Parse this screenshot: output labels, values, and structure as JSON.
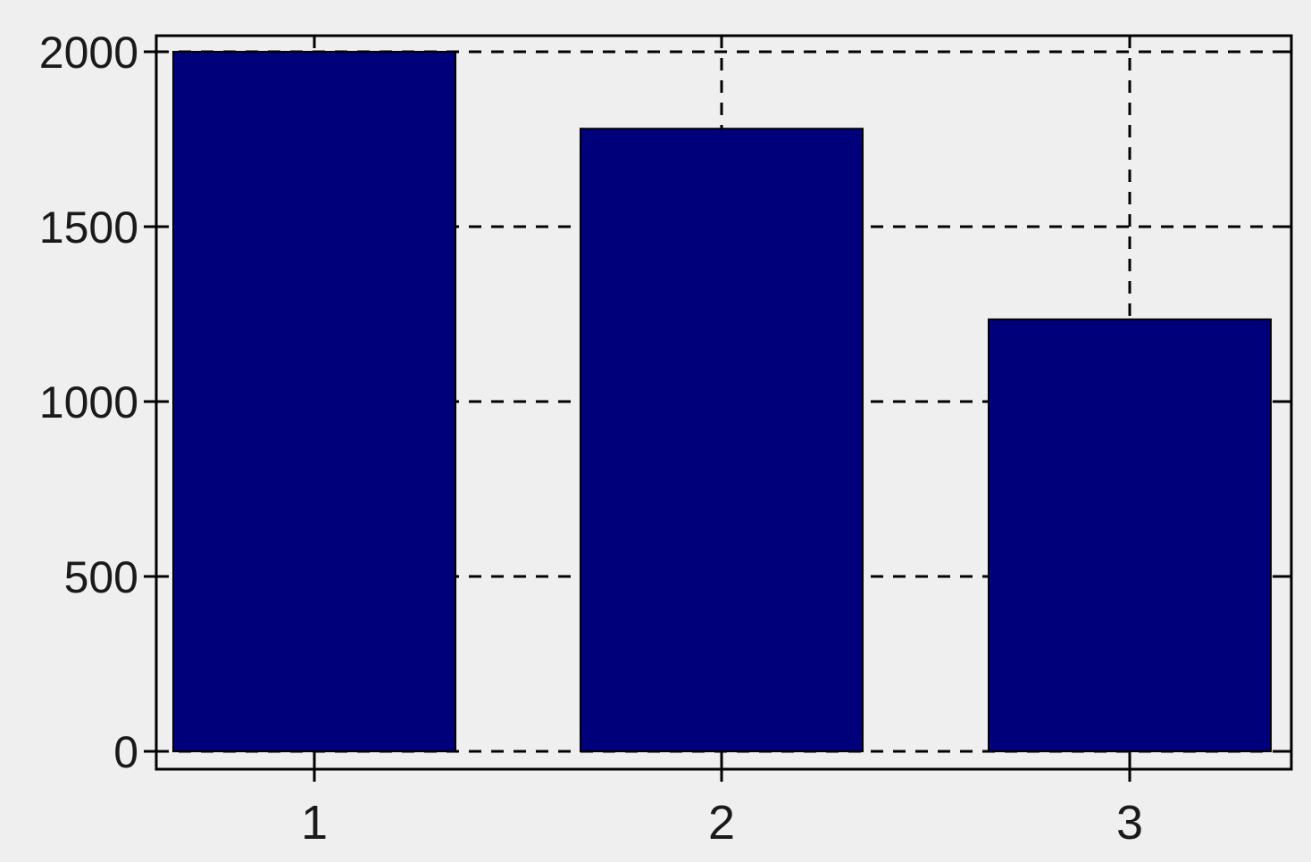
{
  "chart_data": {
    "type": "bar",
    "categories": [
      "1",
      "2",
      "3"
    ],
    "values": [
      2000,
      1780,
      1235
    ],
    "title": "",
    "xlabel": "",
    "ylabel": "",
    "ylim": [
      0,
      2000
    ],
    "yticks": [
      "0",
      "500",
      "1000",
      "1500",
      "2000"
    ],
    "xticks": [
      "1",
      "2",
      "3"
    ],
    "grid": true,
    "grid_style": "dashed",
    "legend": "none"
  },
  "colors": {
    "bar_fill": "#00007b",
    "background": "#efefef",
    "axes_frame": "#000000",
    "grid": "#000000"
  }
}
